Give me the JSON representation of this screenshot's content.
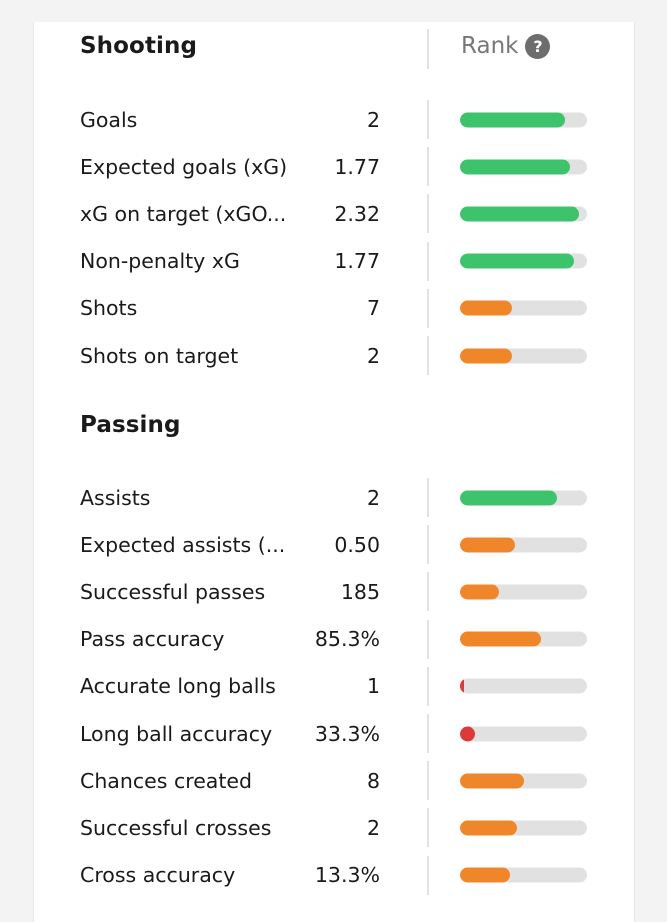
{
  "colors": {
    "green": "#3cc36b",
    "orange": "#f0862a",
    "red": "#dc3a3a",
    "track": "#e1e1e1"
  },
  "header": {
    "rank_label": "Rank",
    "help_icon": "question-mark-icon",
    "help_glyph": "?"
  },
  "shooting": {
    "title": "Shooting",
    "rows": [
      {
        "label": "Goals",
        "value": "2",
        "rank_fraction": 0.83,
        "color": "green"
      },
      {
        "label": "Expected goals (xG)",
        "value": "1.77",
        "rank_fraction": 0.87,
        "color": "green"
      },
      {
        "label": "xG on target (xGO...",
        "value": "2.32",
        "rank_fraction": 0.94,
        "color": "green"
      },
      {
        "label": "Non-penalty xG",
        "value": "1.77",
        "rank_fraction": 0.9,
        "color": "green"
      },
      {
        "label": "Shots",
        "value": "7",
        "rank_fraction": 0.41,
        "color": "orange"
      },
      {
        "label": "Shots on target",
        "value": "2",
        "rank_fraction": 0.41,
        "color": "orange"
      }
    ]
  },
  "passing": {
    "title": "Passing",
    "rows": [
      {
        "label": "Assists",
        "value": "2",
        "rank_fraction": 0.76,
        "color": "green"
      },
      {
        "label": "Expected assists (...",
        "value": "0.50",
        "rank_fraction": 0.43,
        "color": "orange"
      },
      {
        "label": "Successful passes",
        "value": "185",
        "rank_fraction": 0.31,
        "color": "orange"
      },
      {
        "label": "Pass accuracy",
        "value": "85.3%",
        "rank_fraction": 0.64,
        "color": "orange"
      },
      {
        "label": "Accurate long balls",
        "value": "1",
        "rank_fraction": 0.03,
        "color": "red"
      },
      {
        "label": "Long ball accuracy",
        "value": "33.3%",
        "rank_fraction": 0.12,
        "color": "red"
      },
      {
        "label": "Chances created",
        "value": "8",
        "rank_fraction": 0.5,
        "color": "orange"
      },
      {
        "label": "Successful crosses",
        "value": "2",
        "rank_fraction": 0.45,
        "color": "orange"
      },
      {
        "label": "Cross accuracy",
        "value": "13.3%",
        "rank_fraction": 0.39,
        "color": "orange"
      }
    ]
  }
}
